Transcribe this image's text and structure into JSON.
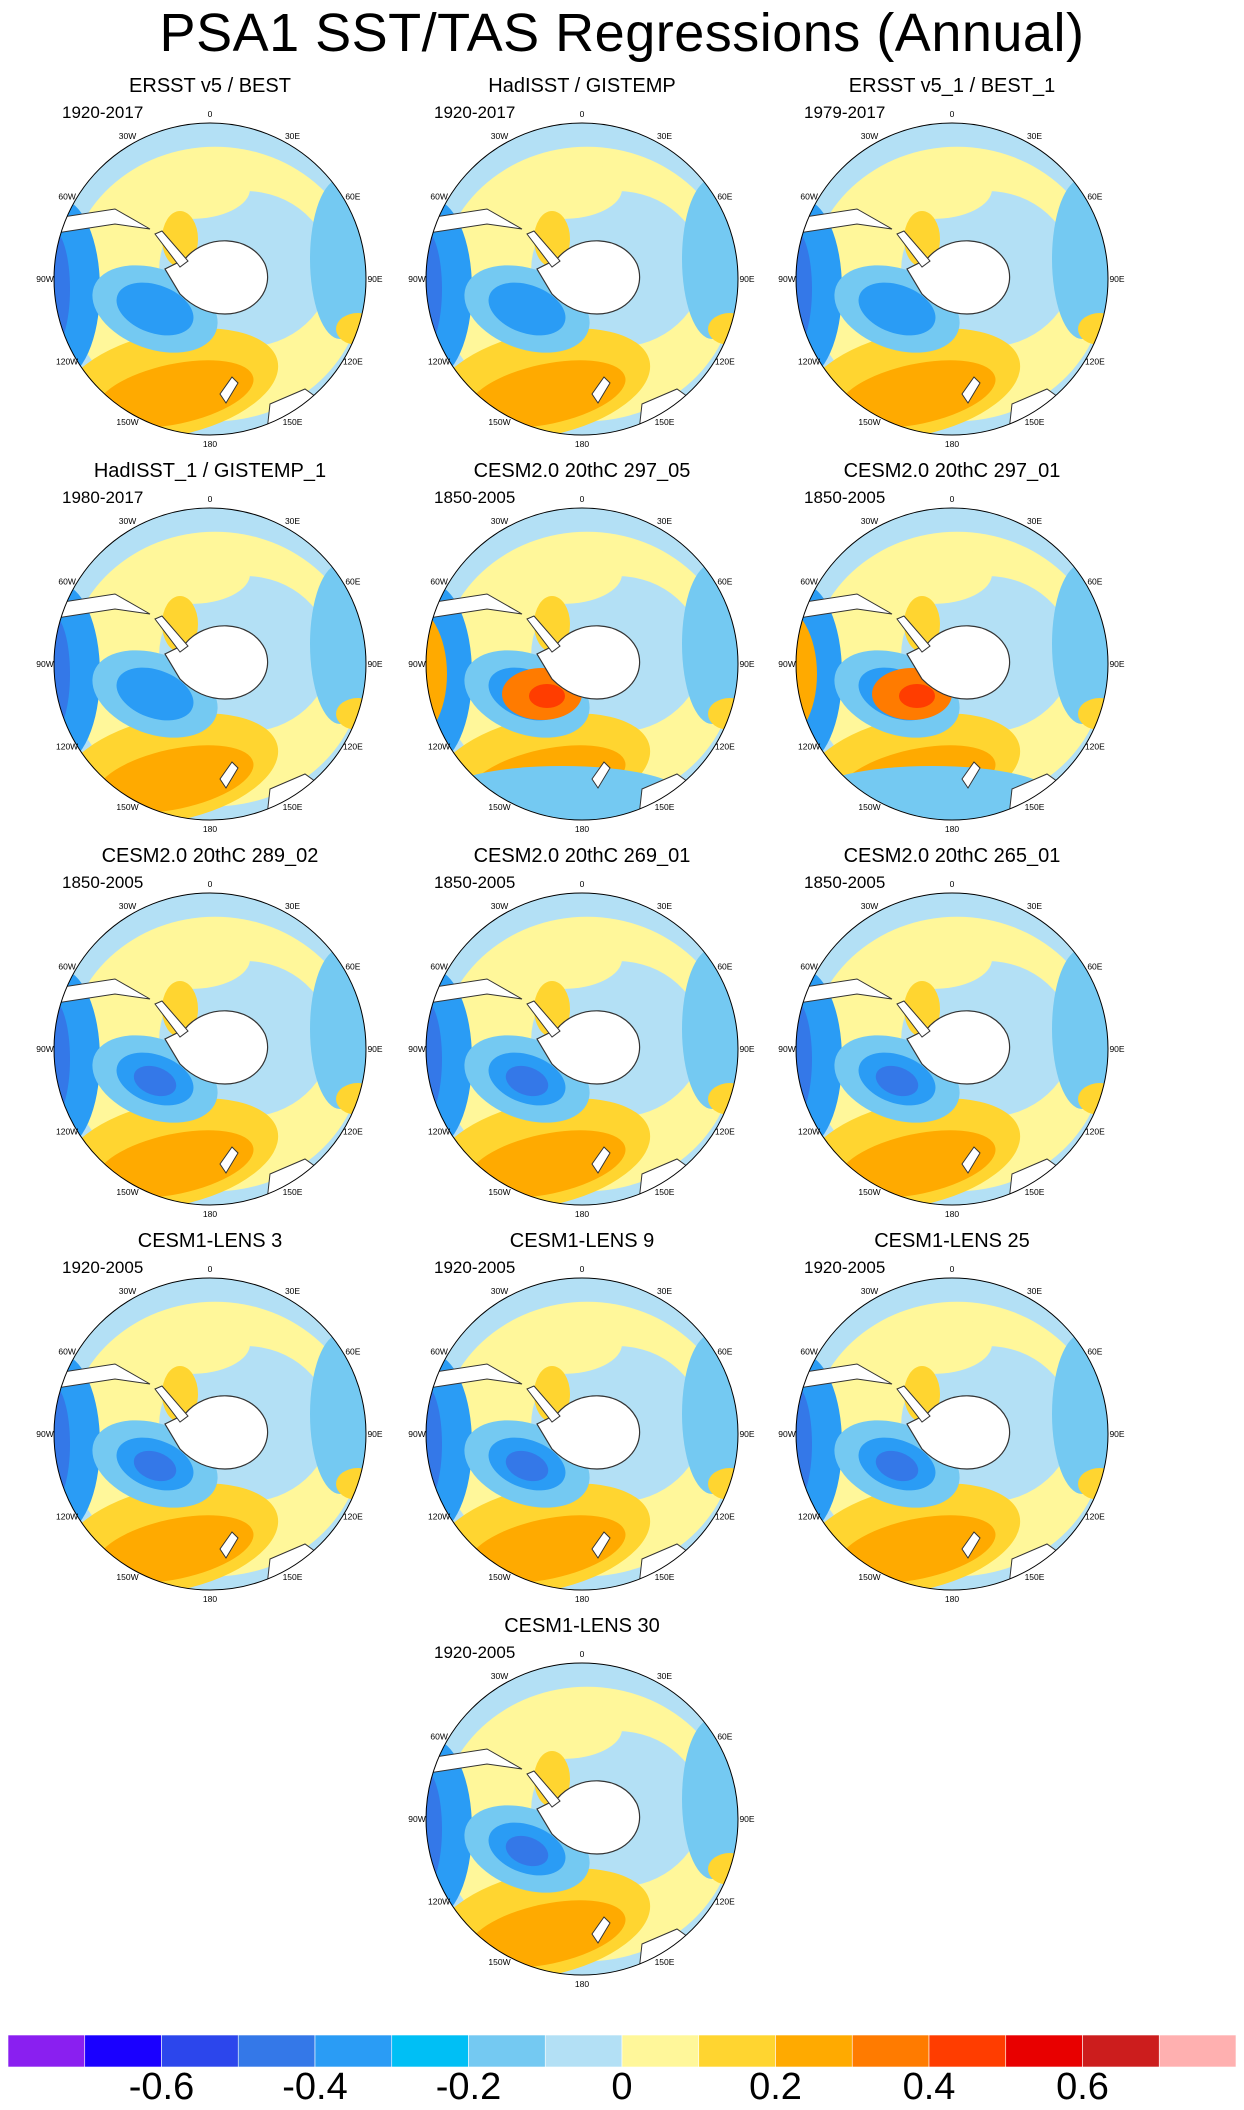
{
  "figure": {
    "title": "PSA1 SST/TAS Regressions (Annual)"
  },
  "axis_labels": [
    "0",
    "30E",
    "60E",
    "90E",
    "120E",
    "150E",
    "180",
    "150W",
    "120W",
    "90W",
    "60W",
    "30W"
  ],
  "panels": [
    {
      "title": "ERSST v5 / BEST",
      "period": "1920-2017"
    },
    {
      "title": "HadISST / GISTEMP",
      "period": "1920-2017"
    },
    {
      "title": "ERSST v5_1 / BEST_1",
      "period": "1979-2017"
    },
    {
      "title": "HadISST_1 / GISTEMP_1",
      "period": "1980-2017"
    },
    {
      "title": "CESM2.0 20thC 297_05",
      "period": "1850-2005"
    },
    {
      "title": "CESM2.0 20thC 297_01",
      "period": "1850-2005"
    },
    {
      "title": "CESM2.0 20thC 289_02",
      "period": "1850-2005"
    },
    {
      "title": "CESM2.0 20thC 269_01",
      "period": "1850-2005"
    },
    {
      "title": "CESM2.0 20thC 265_01",
      "period": "1850-2005"
    },
    {
      "title": "CESM1-LENS 3",
      "period": "1920-2005"
    },
    {
      "title": "CESM1-LENS 9",
      "period": "1920-2005"
    },
    {
      "title": "CESM1-LENS 25",
      "period": "1920-2005"
    },
    {
      "title": "CESM1-LENS 30",
      "period": "1920-2005"
    }
  ],
  "colorbar": {
    "colors": [
      "#8a1ff0",
      "#1a00ff",
      "#2c46ec",
      "#3478e8",
      "#2a9cf5",
      "#00bff5",
      "#74c9f2",
      "#b3e0f5",
      "#fff79a",
      "#ffd530",
      "#ffaa00",
      "#ff7b00",
      "#ff3d00",
      "#e80000",
      "#cc1d1d",
      "#ffb0b0"
    ],
    "labels": [
      "-0.6",
      "-0.4",
      "-0.2",
      "0",
      "0.2",
      "0.4",
      "0.6"
    ],
    "label_positions": [
      1,
      3,
      5,
      7,
      9,
      11,
      13
    ]
  },
  "map_palette": {
    "ocean_base": "#b3e0f5",
    "pos_weak": "#fff79a",
    "pos_mid": "#ffd530",
    "pos_strong": "#ffaa00",
    "pos_vstrong": "#ff7b00",
    "pos_max": "#ff3d00",
    "neg_weak": "#74c9f2",
    "neg_mid": "#2a9cf5",
    "neg_strong": "#3478e8",
    "land": "#ffffff",
    "coast": "#333333"
  }
}
